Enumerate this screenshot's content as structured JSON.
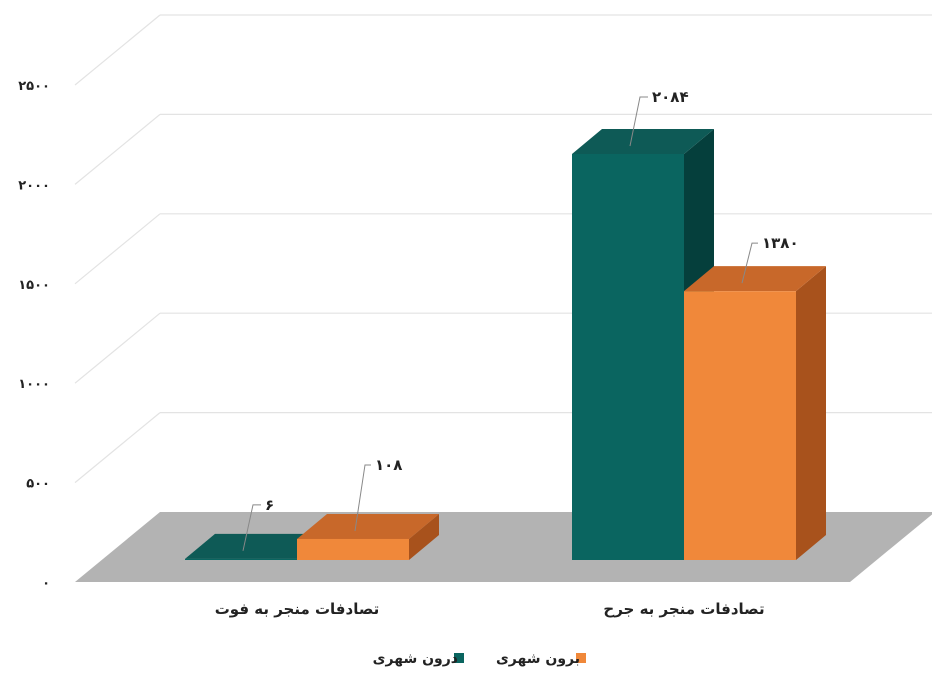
{
  "chart_data": {
    "type": "bar",
    "categories": [
      "تصادفات منجر به فوت",
      "تصادفات منجر به جرح"
    ],
    "series": [
      {
        "name": "درون شهری",
        "values": [
          6,
          2084
        ],
        "labels": [
          "۶",
          "۲۰۸۴"
        ],
        "color": "#0a6560",
        "side_color": "#053f3c",
        "top_color": "#0e5a56"
      },
      {
        "name": "برون شهری",
        "values": [
          108,
          1380
        ],
        "labels": [
          "۱۰۸",
          "۱۳۸۰"
        ],
        "color": "#f0883a",
        "side_color": "#a8521c",
        "top_color": "#c8682a"
      }
    ],
    "ylim": [
      0,
      2500
    ],
    "yticks": [
      0,
      500,
      1000,
      1500,
      2000,
      2500
    ],
    "ytick_labels": [
      "۰",
      "۵۰۰",
      "۱۰۰۰",
      "۱۵۰۰",
      "۲۰۰۰",
      "۲۵۰۰"
    ],
    "grid": true,
    "three_d": true,
    "legend_position": "bottom"
  }
}
